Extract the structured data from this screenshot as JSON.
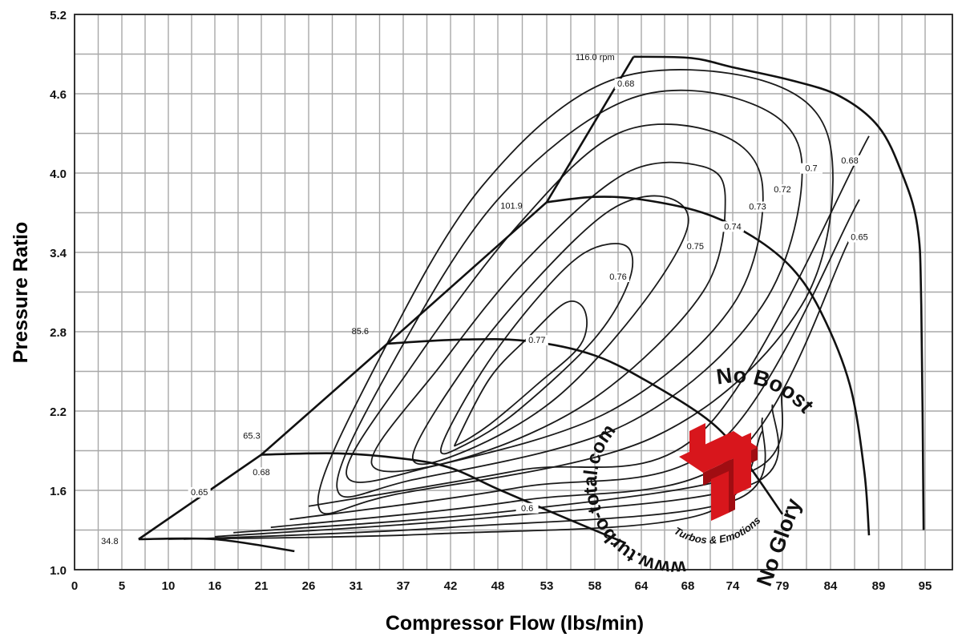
{
  "chart_data": {
    "type": "line",
    "xlabel": "Compressor Flow (lbs/min)",
    "ylabel": "Pressure Ratio",
    "x_ticks": [
      "0",
      "5",
      "10",
      "16",
      "21",
      "26",
      "31",
      "37",
      "42",
      "48",
      "53",
      "58",
      "64",
      "68",
      "74",
      "79",
      "84",
      "89",
      "95"
    ],
    "y_ticks": [
      "1.0",
      "1.6",
      "2.2",
      "2.8",
      "3.4",
      "4.0",
      "4.6",
      "5.2"
    ],
    "ylim": [
      1.0,
      5.2
    ],
    "grid": true,
    "speed_lines": [
      {
        "label": "34.8",
        "unit": "",
        "points": [
          [
            6.8,
            1.23
          ],
          [
            16,
            1.23
          ],
          [
            24.5,
            1.14
          ]
        ]
      },
      {
        "label": "65.3",
        "unit": "",
        "points": [
          [
            21,
            1.87
          ],
          [
            29,
            1.88
          ],
          [
            37,
            1.84
          ],
          [
            42,
            1.77
          ],
          [
            48,
            1.61
          ],
          [
            54,
            1.42
          ],
          [
            62,
            1.2
          ]
        ]
      },
      {
        "label": "85.6",
        "unit": "",
        "points": [
          [
            35,
            2.71
          ],
          [
            43,
            2.74
          ],
          [
            51,
            2.73
          ],
          [
            58,
            2.62
          ],
          [
            65,
            2.4
          ],
          [
            71,
            2.12
          ],
          [
            75,
            1.85
          ],
          [
            79,
            1.42
          ]
        ]
      },
      {
        "label": "101.9",
        "unit": "",
        "points": [
          [
            53,
            3.78
          ],
          [
            58,
            3.82
          ],
          [
            64,
            3.8
          ],
          [
            70,
            3.7
          ],
          [
            76,
            3.52
          ],
          [
            80,
            3.28
          ],
          [
            83,
            2.95
          ],
          [
            86,
            2.4
          ],
          [
            87.5,
            1.75
          ],
          [
            88,
            1.26
          ]
        ]
      },
      {
        "label": "116.0",
        "unit": "rpm",
        "points": [
          [
            63,
            4.88
          ],
          [
            68.5,
            4.87
          ],
          [
            74,
            4.8
          ],
          [
            80,
            4.7
          ],
          [
            85,
            4.58
          ],
          [
            89,
            4.35
          ],
          [
            92,
            4.0
          ],
          [
            94,
            3.6
          ],
          [
            94.5,
            3.0
          ],
          [
            94.8,
            1.3
          ]
        ]
      }
    ],
    "efficiency_labels": [
      "0.6",
      "0.65",
      "0.68",
      "0.7",
      "0.72",
      "0.73",
      "0.74",
      "0.75",
      "0.76",
      "0.77",
      "0.65",
      "0.68",
      "0.68"
    ],
    "surge_line": [
      [
        6.8,
        1.23
      ],
      [
        21,
        1.87
      ],
      [
        35,
        2.71
      ],
      [
        53,
        3.78
      ],
      [
        63,
        4.88
      ]
    ],
    "watermark": {
      "url": "www.turbo-total.com",
      "slogan_top": "No Boost",
      "slogan_bottom": "No Glory",
      "brand": "Turbos & Emotions",
      "brand_color": "#d8161c"
    }
  }
}
